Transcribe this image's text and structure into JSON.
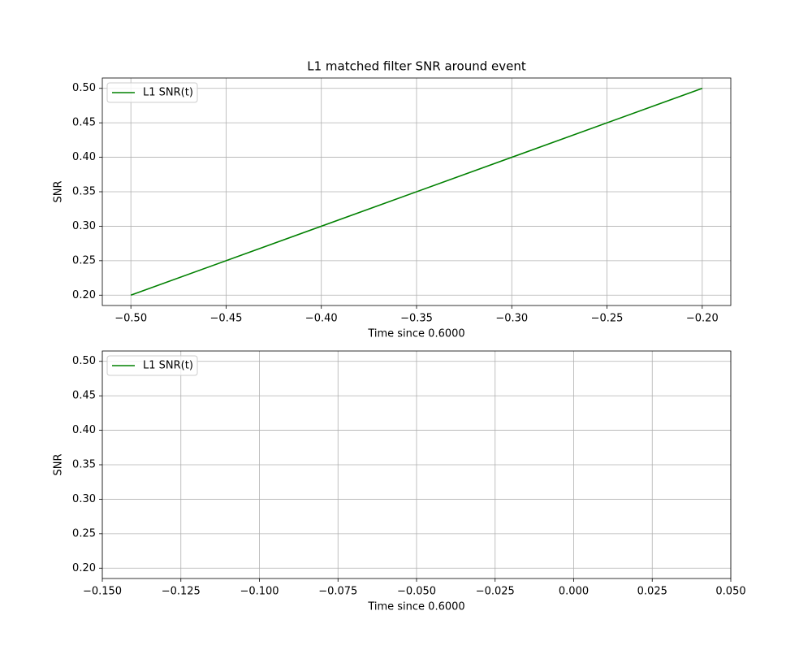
{
  "chart_data": [
    {
      "type": "line",
      "title": "L1 matched filter SNR around event",
      "xlabel": "Time since 0.6000",
      "ylabel": "SNR",
      "x": [
        -0.5,
        -0.2
      ],
      "series": [
        {
          "name": "L1 SNR(t)",
          "color": "green",
          "values": [
            0.2,
            0.5
          ]
        }
      ],
      "xlim": [
        -0.515,
        -0.185
      ],
      "xticks": [
        {
          "value": -0.5,
          "label": "−0.50"
        },
        {
          "value": -0.45,
          "label": "−0.45"
        },
        {
          "value": -0.4,
          "label": "−0.40"
        },
        {
          "value": -0.35,
          "label": "−0.35"
        },
        {
          "value": -0.3,
          "label": "−0.30"
        },
        {
          "value": -0.25,
          "label": "−0.25"
        },
        {
          "value": -0.2,
          "label": "−0.20"
        }
      ],
      "ylim": [
        0.185,
        0.515
      ],
      "yticks": [
        {
          "value": 0.2,
          "label": "0.20"
        },
        {
          "value": 0.25,
          "label": "0.25"
        },
        {
          "value": 0.3,
          "label": "0.30"
        },
        {
          "value": 0.35,
          "label": "0.35"
        },
        {
          "value": 0.4,
          "label": "0.40"
        },
        {
          "value": 0.45,
          "label": "0.45"
        },
        {
          "value": 0.5,
          "label": "0.50"
        }
      ],
      "grid": true,
      "legend": "upper-left"
    },
    {
      "type": "line",
      "xlabel": "Time since 0.6000",
      "ylabel": "SNR",
      "x": [],
      "series": [
        {
          "name": "L1 SNR(t)",
          "color": "green",
          "values": []
        }
      ],
      "xlim": [
        -0.15,
        0.05
      ],
      "xticks": [
        {
          "value": -0.15,
          "label": "−0.150"
        },
        {
          "value": -0.125,
          "label": "−0.125"
        },
        {
          "value": -0.1,
          "label": "−0.100"
        },
        {
          "value": -0.075,
          "label": "−0.075"
        },
        {
          "value": -0.05,
          "label": "−0.050"
        },
        {
          "value": -0.025,
          "label": "−0.025"
        },
        {
          "value": 0,
          "label": "0.000"
        },
        {
          "value": 0.025,
          "label": "0.025"
        },
        {
          "value": 0.05,
          "label": "0.050"
        }
      ],
      "ylim": [
        0.185,
        0.515
      ],
      "yticks": [
        {
          "value": 0.2,
          "label": "0.20"
        },
        {
          "value": 0.25,
          "label": "0.25"
        },
        {
          "value": 0.3,
          "label": "0.30"
        },
        {
          "value": 0.35,
          "label": "0.35"
        },
        {
          "value": 0.4,
          "label": "0.40"
        },
        {
          "value": 0.45,
          "label": "0.45"
        },
        {
          "value": 0.5,
          "label": "0.50"
        }
      ],
      "grid": true,
      "legend": "upper-left"
    }
  ]
}
